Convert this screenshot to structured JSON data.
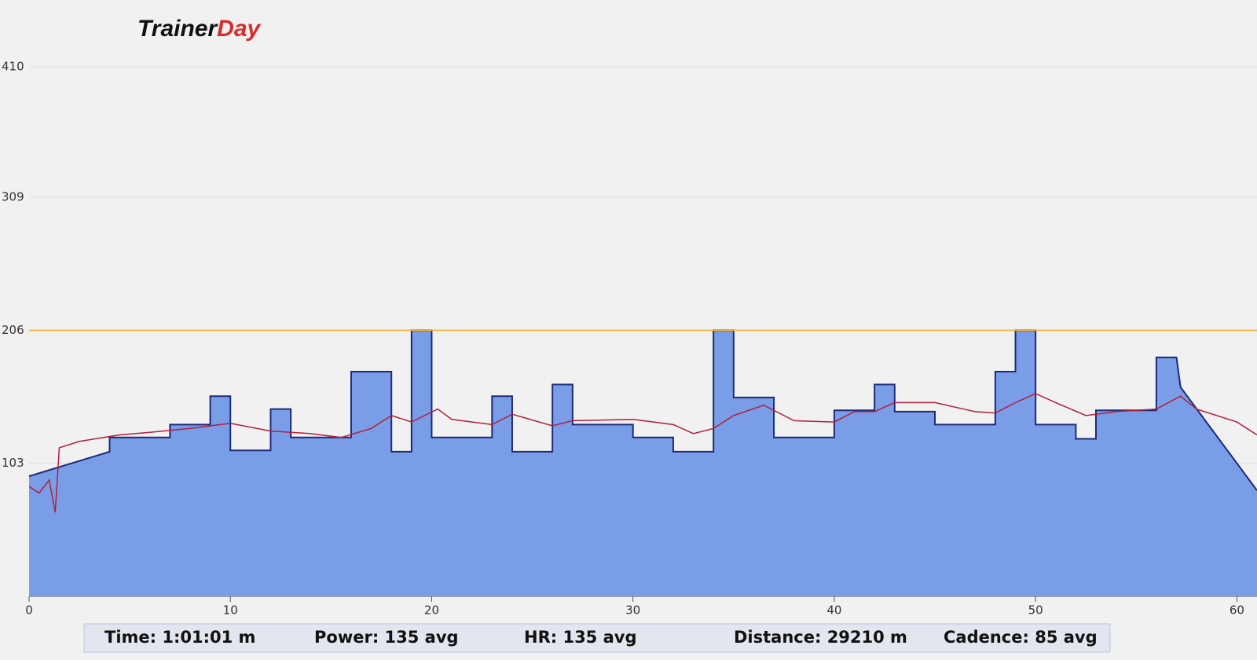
{
  "logo": [
    "Trainer",
    "Day"
  ],
  "chart_data": {
    "type": "area",
    "xlim": [
      0,
      61
    ],
    "xticks": [
      0,
      10,
      20,
      30,
      40,
      50,
      60
    ],
    "ylim": [
      0,
      410
    ],
    "yticks": [
      103,
      206,
      309,
      410
    ],
    "grid": true,
    "ftp_line": 206,
    "ftp_color": "#f3b23c",
    "series": [
      {
        "name": "Power",
        "color": "#7a9de8",
        "line_color": "#1c2a78",
        "x": [
          0,
          4,
          4,
          7,
          7,
          9,
          9,
          10,
          10,
          12,
          12,
          13,
          13,
          16,
          16,
          18,
          18,
          19,
          19,
          20,
          20,
          23,
          23,
          24,
          24,
          26,
          26,
          27,
          27,
          30,
          30,
          32,
          32,
          34,
          34,
          35,
          35,
          37,
          37,
          40,
          40,
          42,
          42,
          43,
          43,
          45,
          45,
          48,
          48,
          49,
          49,
          50,
          50,
          52,
          52,
          53,
          53,
          56,
          56,
          57,
          57.2,
          61
        ],
        "values": [
          93,
          112,
          123,
          123,
          133,
          133,
          155,
          155,
          113,
          113,
          145,
          145,
          123,
          123,
          174,
          174,
          112,
          112,
          206,
          206,
          123,
          123,
          155,
          155,
          112,
          112,
          164,
          164,
          133,
          133,
          123,
          123,
          112,
          112,
          206,
          206,
          154,
          154,
          123,
          123,
          144,
          144,
          164,
          164,
          143,
          143,
          133,
          133,
          174,
          174,
          206,
          206,
          133,
          133,
          122,
          122,
          144,
          144,
          185,
          185,
          162,
          82
        ]
      },
      {
        "name": "HR",
        "color": "#b0203a",
        "x": [
          0,
          0.5,
          1,
          1.3,
          1.5,
          2.5,
          4.5,
          6,
          8,
          10,
          12,
          14,
          15.5,
          17,
          18,
          19,
          20.3,
          21,
          23,
          24,
          26,
          27,
          30,
          32,
          33,
          34,
          35,
          36.5,
          38,
          40,
          41,
          42,
          43,
          45,
          47,
          48,
          49,
          50,
          51,
          52.5,
          54,
          56,
          57.2,
          58,
          60,
          61
        ],
        "values": [
          85,
          80,
          90,
          65,
          115,
          120,
          125,
          127,
          130,
          134,
          128,
          126,
          123,
          130,
          140,
          135,
          145,
          137,
          133,
          141,
          132,
          136,
          137,
          133,
          126,
          130,
          140,
          148,
          136,
          135,
          143,
          143,
          150,
          150,
          143,
          142,
          150,
          157,
          150,
          140,
          143,
          145,
          155,
          145,
          135,
          125
        ]
      }
    ]
  },
  "stats": [
    "Time: 1:01:01 m",
    "Power: 135 avg",
    "HR: 135 avg",
    "Distance: 29210 m",
    "Cadence: 85 avg"
  ]
}
